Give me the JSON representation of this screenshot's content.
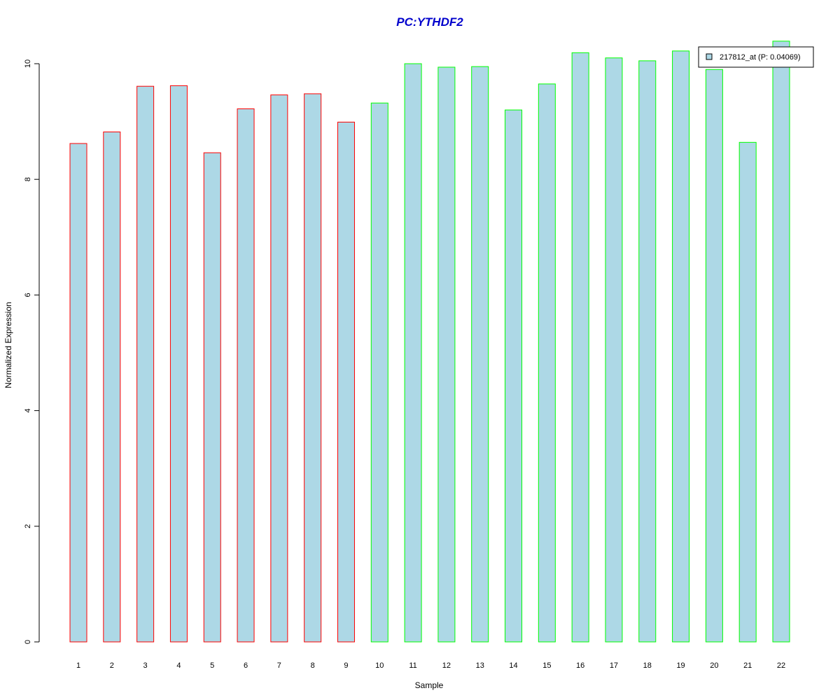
{
  "chart_data": {
    "type": "bar",
    "title": "PC:YTHDF2",
    "xlabel": "Sample",
    "ylabel": "Normalized Expression",
    "categories": [
      "1",
      "2",
      "3",
      "4",
      "5",
      "6",
      "7",
      "8",
      "9",
      "10",
      "11",
      "12",
      "13",
      "14",
      "15",
      "16",
      "17",
      "18",
      "19",
      "20",
      "21",
      "22"
    ],
    "series": [
      {
        "name": "217812_at (P: 0.04069)",
        "values": [
          8.62,
          8.82,
          9.61,
          9.62,
          8.46,
          9.22,
          9.46,
          9.48,
          8.99,
          9.32,
          10.0,
          9.94,
          9.95,
          9.2,
          9.65,
          10.19,
          10.1,
          10.05,
          10.22,
          9.9,
          8.64,
          10.39
        ],
        "groups": [
          "red",
          "red",
          "red",
          "red",
          "red",
          "red",
          "red",
          "red",
          "red",
          "green",
          "green",
          "green",
          "green",
          "green",
          "green",
          "green",
          "green",
          "green",
          "green",
          "green",
          "green",
          "green"
        ]
      }
    ],
    "yticks": [
      0,
      2,
      4,
      6,
      8,
      10
    ],
    "ylim": [
      0,
      10.4
    ],
    "grid": false,
    "legend_position": "top-right",
    "colors": {
      "title": "#0000cc",
      "bar_fill": "#add8e6",
      "red_border": "#ff0000",
      "green_border": "#00ff00",
      "axis": "#000000"
    }
  }
}
